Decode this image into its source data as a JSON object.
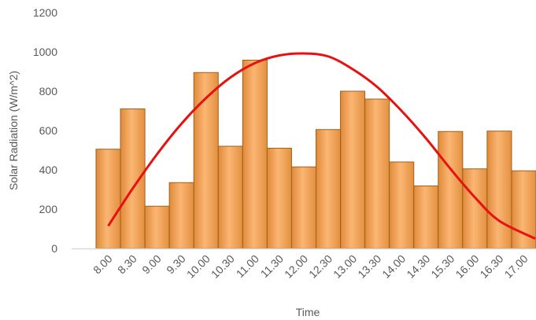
{
  "chart_data": {
    "type": "bar",
    "xlabel": "Time",
    "ylabel": "Solar Radiation (W/m^2)",
    "ylim": [
      0,
      1200
    ],
    "yticks": [
      0,
      200,
      400,
      600,
      800,
      1000,
      1200
    ],
    "grid": false,
    "categories": [
      "8.00",
      "8.30",
      "9.00",
      "9.30",
      "10.00",
      "10.30",
      "11.00",
      "11.30",
      "12.00",
      "12.30",
      "13.00",
      "13.30",
      "14.00",
      "14.30",
      "15.30",
      "16.00",
      "16.30",
      "17.00"
    ],
    "series": [
      {
        "type": "bar",
        "values": [
          505,
          710,
          215,
          335,
          895,
          520,
          958,
          510,
          415,
          605,
          800,
          760,
          440,
          318,
          595,
          405,
          597,
          395
        ]
      },
      {
        "type": "line",
        "values": [
          115,
          305,
          480,
          635,
          765,
          870,
          943,
          982,
          992,
          977,
          912,
          822,
          700,
          560,
          405,
          260,
          140,
          50
        ]
      }
    ],
    "colors": {
      "bar": "#f4a460",
      "bar_dark": "#d98535",
      "line": "#e81010",
      "axis": "#d9d9d9",
      "text": "#595959"
    }
  }
}
